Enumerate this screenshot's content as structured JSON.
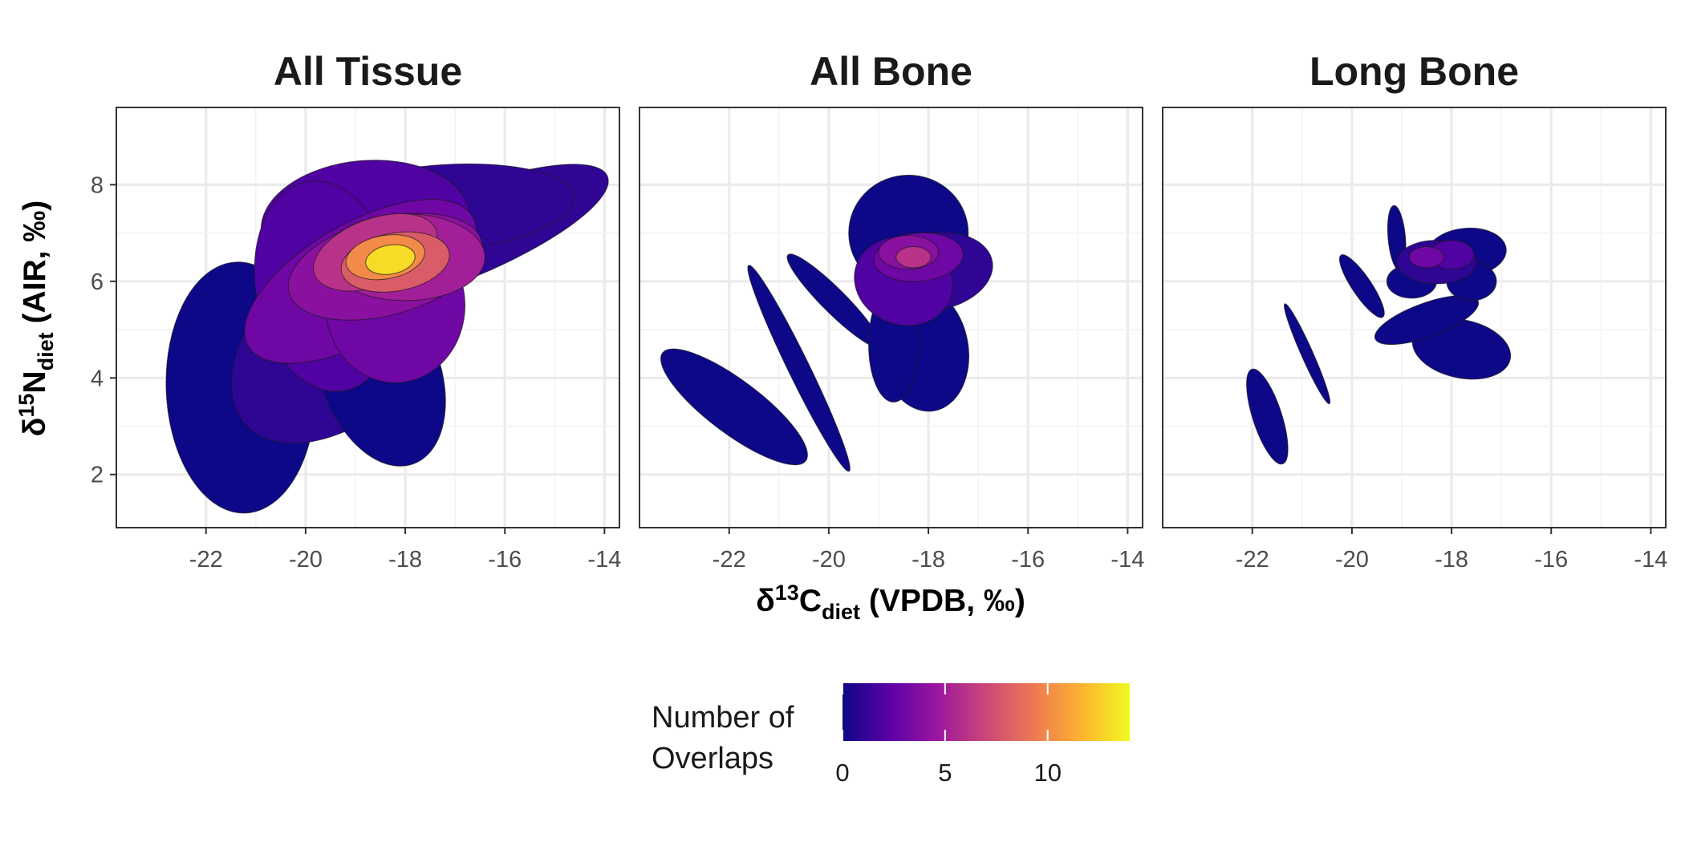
{
  "chart_data": {
    "type": "scatter",
    "description_type": "ellipse-overlap",
    "xlabel": {
      "delta": "δ",
      "sup": "13",
      "elem": "C",
      "sub": "diet",
      "rest": " (VPDB, ‰)"
    },
    "ylabel": {
      "delta": "δ",
      "sup": "15",
      "elem": "N",
      "sub": "diet",
      "rest": " (AIR, ‰)"
    },
    "xlim": [
      -23.8,
      -13.7
    ],
    "ylim": [
      0.9,
      9.6
    ],
    "xticks": [
      -22,
      -20,
      -18,
      -16,
      -14
    ],
    "xtick_labels": [
      "-22",
      "-20",
      "-18",
      "-16",
      "-14"
    ],
    "yticks": [
      2,
      4,
      6,
      8
    ],
    "ytick_labels": [
      "2",
      "4",
      "6",
      "8"
    ],
    "grid": true,
    "legend": {
      "title_line1": "Number of",
      "title_line2": "Overlaps",
      "placement": "bottom",
      "range": [
        0,
        14
      ],
      "ticks": [
        0,
        5,
        10
      ],
      "tick_labels": [
        "0",
        "5",
        "10"
      ],
      "colors": [
        "#0d0887",
        "#5c01a6",
        "#9c179e",
        "#cc4778",
        "#ed7953",
        "#fdb42f",
        "#f0f921"
      ]
    },
    "panels": [
      {
        "title": "All Tissue",
        "ellipses": [
          {
            "cx": -21.3,
            "cy": 3.8,
            "rx": 1.5,
            "ry": 2.6,
            "rot": 2,
            "n": 0
          },
          {
            "cx": -19.2,
            "cy": 4.9,
            "rx": 2.7,
            "ry": 1.7,
            "rot": 42,
            "n": 1
          },
          {
            "cx": -18.5,
            "cy": 4.1,
            "rx": 1.2,
            "ry": 2.0,
            "rot": 20,
            "n": 0
          },
          {
            "cx": -17.0,
            "cy": 6.9,
            "rx": 3.3,
            "ry": 0.9,
            "rot": 22,
            "n": 1
          },
          {
            "cx": -17.4,
            "cy": 7.5,
            "rx": 2.8,
            "ry": 0.9,
            "rot": 5,
            "n": 1
          },
          {
            "cx": -18.8,
            "cy": 7.2,
            "rx": 2.1,
            "ry": 1.3,
            "rot": 5,
            "n": 2
          },
          {
            "cx": -19.6,
            "cy": 5.9,
            "rx": 1.4,
            "ry": 2.2,
            "rot": 10,
            "n": 2
          },
          {
            "cx": -18.9,
            "cy": 6.0,
            "rx": 2.6,
            "ry": 1.2,
            "rot": 30,
            "n": 3
          },
          {
            "cx": -18.2,
            "cy": 5.5,
            "rx": 1.4,
            "ry": 1.6,
            "rot": 0,
            "n": 3
          },
          {
            "cx": -18.4,
            "cy": 6.3,
            "rx": 2.0,
            "ry": 1.0,
            "rot": 15,
            "n": 4
          },
          {
            "cx": -18.0,
            "cy": 6.5,
            "rx": 1.6,
            "ry": 0.9,
            "rot": 0,
            "n": 5
          },
          {
            "cx": -18.6,
            "cy": 6.6,
            "rx": 1.3,
            "ry": 0.7,
            "rot": 20,
            "n": 6
          },
          {
            "cx": -18.2,
            "cy": 6.4,
            "rx": 1.1,
            "ry": 0.6,
            "rot": 10,
            "n": 8
          },
          {
            "cx": -18.4,
            "cy": 6.5,
            "rx": 0.8,
            "ry": 0.45,
            "rot": 10,
            "n": 10
          },
          {
            "cx": -18.3,
            "cy": 6.45,
            "rx": 0.5,
            "ry": 0.3,
            "rot": 10,
            "n": 13
          }
        ]
      },
      {
        "title": "All Bone",
        "ellipses": [
          {
            "cx": -21.9,
            "cy": 3.4,
            "rx": 1.8,
            "ry": 0.55,
            "rot": -37,
            "n": 0
          },
          {
            "cx": -20.6,
            "cy": 4.2,
            "rx": 2.3,
            "ry": 0.22,
            "rot": -64,
            "n": 0
          },
          {
            "cx": -19.9,
            "cy": 5.6,
            "rx": 1.3,
            "ry": 0.25,
            "rot": -45,
            "n": 0
          },
          {
            "cx": -18.1,
            "cy": 4.6,
            "rx": 0.9,
            "ry": 1.3,
            "rot": 10,
            "n": 0
          },
          {
            "cx": -18.7,
            "cy": 4.7,
            "rx": 0.5,
            "ry": 1.2,
            "rot": 0,
            "n": 0
          },
          {
            "cx": -18.4,
            "cy": 7.0,
            "rx": 1.2,
            "ry": 1.2,
            "rot": 0,
            "n": 0
          },
          {
            "cx": -17.9,
            "cy": 6.2,
            "rx": 1.2,
            "ry": 0.8,
            "rot": 10,
            "n": 1
          },
          {
            "cx": -18.5,
            "cy": 6.0,
            "rx": 1.0,
            "ry": 0.9,
            "rot": -20,
            "n": 2
          },
          {
            "cx": -18.2,
            "cy": 6.5,
            "rx": 0.9,
            "ry": 0.5,
            "rot": 5,
            "n": 3
          },
          {
            "cx": -18.4,
            "cy": 6.6,
            "rx": 0.6,
            "ry": 0.35,
            "rot": 0,
            "n": 4
          },
          {
            "cx": -18.3,
            "cy": 6.5,
            "rx": 0.35,
            "ry": 0.22,
            "rot": 0,
            "n": 6
          }
        ]
      },
      {
        "title": "Long Bone",
        "ellipses": [
          {
            "cx": -21.7,
            "cy": 3.2,
            "rx": 1.0,
            "ry": 0.3,
            "rot": -72,
            "n": 0
          },
          {
            "cx": -20.9,
            "cy": 4.5,
            "rx": 1.1,
            "ry": 0.12,
            "rot": -66,
            "n": 0
          },
          {
            "cx": -19.8,
            "cy": 5.9,
            "rx": 0.75,
            "ry": 0.2,
            "rot": -56,
            "n": 0
          },
          {
            "cx": -19.1,
            "cy": 6.9,
            "rx": 0.65,
            "ry": 0.18,
            "rot": -85,
            "n": 0
          },
          {
            "cx": -17.8,
            "cy": 4.6,
            "rx": 1.0,
            "ry": 0.6,
            "rot": -12,
            "n": 0
          },
          {
            "cx": -17.7,
            "cy": 6.6,
            "rx": 0.8,
            "ry": 0.5,
            "rot": 5,
            "n": 0
          },
          {
            "cx": -18.5,
            "cy": 5.2,
            "rx": 1.1,
            "ry": 0.35,
            "rot": 20,
            "n": 0
          },
          {
            "cx": -18.8,
            "cy": 6.0,
            "rx": 0.5,
            "ry": 0.35,
            "rot": 0,
            "n": 0
          },
          {
            "cx": -17.6,
            "cy": 6.0,
            "rx": 0.5,
            "ry": 0.4,
            "rot": 0,
            "n": 0
          },
          {
            "cx": -18.3,
            "cy": 6.4,
            "rx": 0.8,
            "ry": 0.45,
            "rot": 0,
            "n": 1
          },
          {
            "cx": -18.0,
            "cy": 6.55,
            "rx": 0.45,
            "ry": 0.3,
            "rot": 0,
            "n": 2
          },
          {
            "cx": -18.5,
            "cy": 6.5,
            "rx": 0.35,
            "ry": 0.22,
            "rot": 0,
            "n": 3
          }
        ]
      }
    ]
  }
}
